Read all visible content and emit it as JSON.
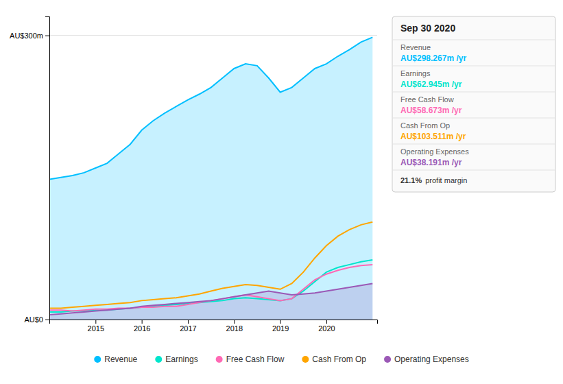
{
  "chart_data": {
    "type": "area",
    "title": "Sep 30 2020",
    "x": [
      2014.0,
      2014.25,
      2014.5,
      2014.75,
      2015.0,
      2015.25,
      2015.5,
      2015.75,
      2016.0,
      2016.25,
      2016.5,
      2016.75,
      2017.0,
      2017.25,
      2017.5,
      2017.75,
      2018.0,
      2018.25,
      2018.5,
      2018.75,
      2019.0,
      2019.25,
      2019.5,
      2019.75,
      2020.0,
      2020.25,
      2020.5,
      2020.75,
      2021.0
    ],
    "xlim": [
      2014.0,
      2021.1
    ],
    "xticks": [
      2015,
      2016,
      2017,
      2018,
      2019,
      2020
    ],
    "ylim": [
      0,
      320
    ],
    "yticks": [
      {
        "value": 0,
        "label": "AU$0"
      },
      {
        "value": 300,
        "label": "AU$300m"
      }
    ],
    "grid": true,
    "legend": "bottom",
    "series": [
      {
        "name": "Revenue",
        "color": "#00bfff",
        "type": "area",
        "values": [
          148,
          150,
          152,
          155,
          160,
          165,
          175,
          185,
          200,
          210,
          218,
          225,
          232,
          238,
          245,
          255,
          265,
          270,
          268,
          255,
          240,
          245,
          255,
          265,
          270,
          278,
          285,
          293,
          298
        ]
      },
      {
        "name": "Earnings",
        "color": "#00e5cc",
        "type": "line",
        "values": [
          8,
          8,
          9,
          9,
          10,
          10,
          11,
          12,
          13,
          14,
          15,
          16,
          17,
          18,
          19,
          20,
          22,
          23,
          22,
          21,
          20,
          22,
          30,
          40,
          50,
          55,
          58,
          61,
          63
        ]
      },
      {
        "name": "Free Cash Flow",
        "color": "#ff69b4",
        "type": "line",
        "values": [
          10,
          10,
          9,
          10,
          11,
          11,
          12,
          12,
          13,
          13,
          14,
          14,
          16,
          18,
          20,
          22,
          24,
          26,
          24,
          22,
          20,
          22,
          32,
          42,
          48,
          52,
          55,
          57,
          58
        ]
      },
      {
        "name": "Cash From Op",
        "color": "#ffa500",
        "type": "line",
        "values": [
          12,
          12,
          13,
          14,
          15,
          16,
          17,
          18,
          20,
          21,
          22,
          23,
          25,
          27,
          30,
          33,
          35,
          37,
          36,
          34,
          32,
          38,
          50,
          65,
          78,
          88,
          95,
          100,
          103
        ]
      },
      {
        "name": "Operating Expenses",
        "color": "#9b59b6",
        "type": "area",
        "values": [
          5,
          6,
          7,
          8,
          9,
          10,
          11,
          12,
          14,
          15,
          16,
          17,
          18,
          19,
          20,
          22,
          24,
          26,
          28,
          30,
          28,
          26,
          27,
          28,
          30,
          32,
          34,
          36,
          38
        ]
      }
    ],
    "annotations": [
      "AU$298.267m /yr",
      "AU$62.945m /yr",
      "AU$58.673m /yr",
      "AU$103.511m /yr",
      "AU$38.191m /yr",
      "21.1%",
      "profit margin"
    ]
  }
}
